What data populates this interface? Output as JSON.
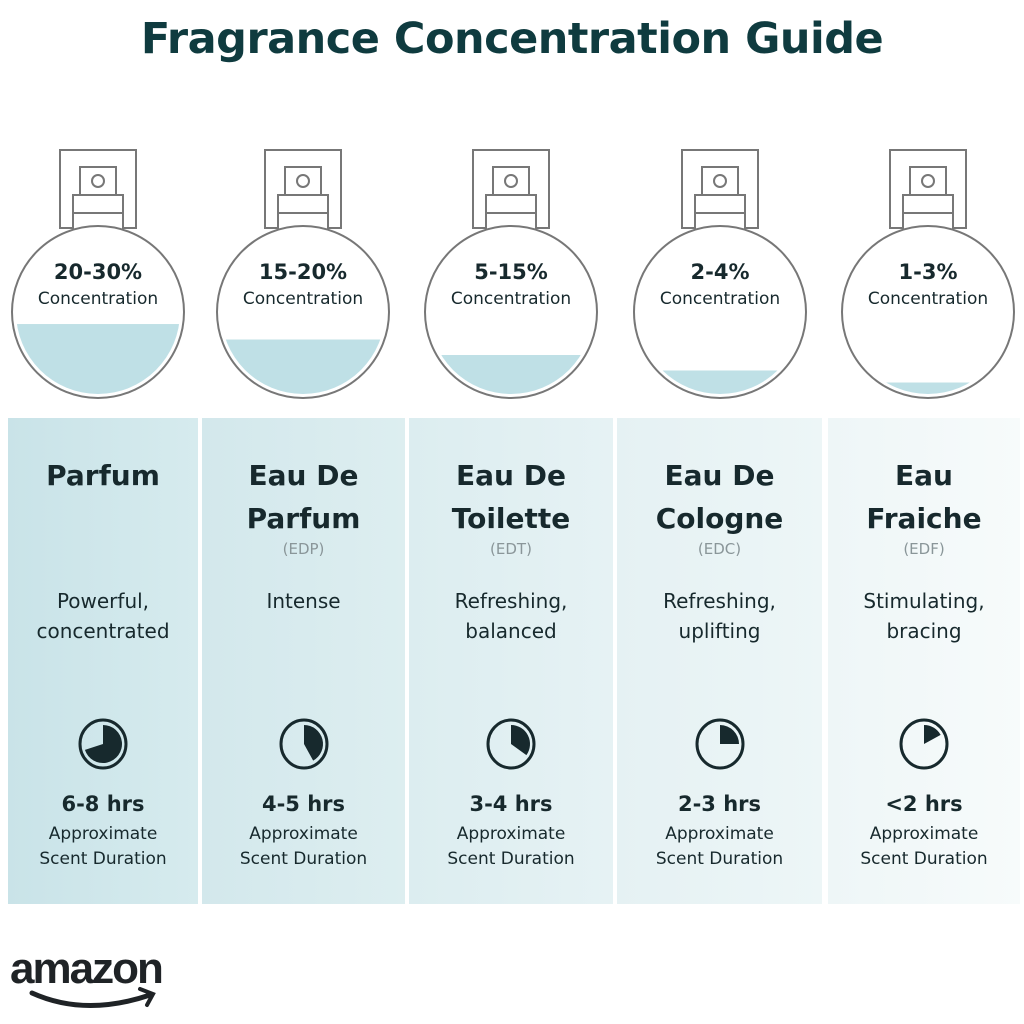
{
  "title": "Fragrance Concentration Guide",
  "colors": {
    "title": "#0f3b3f",
    "liquid": "#bfe0e6",
    "text": "#17292d",
    "outline": "#777777"
  },
  "types": [
    {
      "percent": "20-30%",
      "concentration_label": "Concentration",
      "fill_level": 0.43,
      "name": "Parfum",
      "abbr": "",
      "description": [
        "Powerful,",
        "concentrated"
      ],
      "clock_icon": "clock-pie-icon",
      "clock_fraction": 0.7,
      "duration": "6-8 hrs",
      "duration_label": [
        "Approximate",
        "Scent Duration"
      ]
    },
    {
      "percent": "15-20%",
      "concentration_label": "Concentration",
      "fill_level": 0.34,
      "name": "Eau De Parfum",
      "abbr": "(EDP)",
      "description": [
        "Intense",
        ""
      ],
      "clock_icon": "clock-pie-icon",
      "clock_fraction": 0.42,
      "duration": "4-5 hrs",
      "duration_label": [
        "Approximate",
        "Scent Duration"
      ]
    },
    {
      "percent": "5-15%",
      "concentration_label": "Concentration",
      "fill_level": 0.25,
      "name": "Eau De Toilette",
      "abbr": "(EDT)",
      "description": [
        "Refreshing,",
        "balanced"
      ],
      "clock_icon": "clock-pie-icon",
      "clock_fraction": 0.35,
      "duration": "3-4 hrs",
      "duration_label": [
        "Approximate",
        "Scent Duration"
      ]
    },
    {
      "percent": "2-4%",
      "concentration_label": "Concentration",
      "fill_level": 0.16,
      "name": "Eau De Cologne",
      "abbr": "(EDC)",
      "description": [
        "Refreshing,",
        "uplifting"
      ],
      "clock_icon": "clock-pie-icon",
      "clock_fraction": 0.25,
      "duration": "2-3 hrs",
      "duration_label": [
        "Approximate",
        "Scent Duration"
      ]
    },
    {
      "percent": "1-3%",
      "concentration_label": "Concentration",
      "fill_level": 0.09,
      "name": "Eau Fraiche",
      "abbr": "(EDF)",
      "description": [
        "Stimulating,",
        "bracing"
      ],
      "clock_icon": "clock-pie-icon",
      "clock_fraction": 0.17,
      "duration": "<2 hrs",
      "duration_label": [
        "Approximate",
        "Scent Duration"
      ]
    }
  ],
  "logo": {
    "text": "amazon"
  }
}
